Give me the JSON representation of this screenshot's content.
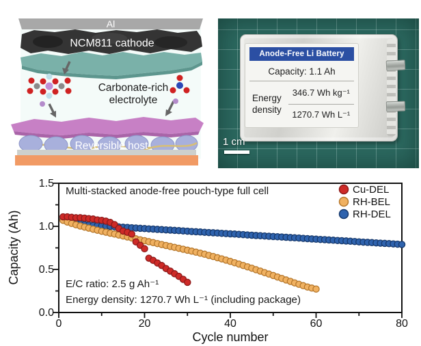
{
  "schematic": {
    "al_label": "Al",
    "cathode_label": "NCM811 cathode",
    "electrolyte_label_line1": "Carbonate-rich",
    "electrolyte_label_line2": "electrolyte",
    "host_label": "Reversible host",
    "colors": {
      "al": "#a8a8a8",
      "cathode": "#343434",
      "cathode_coating": "#7ab1a9",
      "electrolyte_layer": "#c780c5",
      "host_sphere": "#a8b0dc",
      "wire": "#d8bf75",
      "base": "#f19a64"
    }
  },
  "photo": {
    "mat_color": "#2c6a61",
    "label": {
      "header": "Anode-Free Li Battery",
      "header_color": "#2b4fa3",
      "capacity_line": "Capacity: 1.1 Ah",
      "energy_title_line1": "Energy",
      "energy_title_line2": "density",
      "gravimetric_energy": "346.7 Wh kg⁻¹",
      "volumetric_energy": "1270.7 Wh L⁻¹"
    },
    "scale_bar_label": "1 cm"
  },
  "chart_data": {
    "type": "scatter",
    "title_annotation": "Multi-stacked anode-free pouch-type full cell",
    "xlabel": "Cycle number",
    "ylabel": "Capacity (Ah)",
    "xlim": [
      0,
      80
    ],
    "ylim": [
      0.0,
      1.5
    ],
    "x_ticks": [
      0,
      20,
      40,
      60,
      80
    ],
    "y_ticks": [
      0.0,
      0.5,
      1.0,
      1.5
    ],
    "x_tick_labels": [
      "0",
      "20",
      "40",
      "60",
      "80"
    ],
    "y_tick_labels": [
      "1.5",
      "1.0",
      "0.5",
      "0.0"
    ],
    "grid": false,
    "legend_position": "top-right",
    "annotations": [
      "E/C ratio: 2.5 g Ah⁻¹",
      "Energy density: 1270.7 Wh L⁻¹ (including package)"
    ],
    "series": [
      {
        "name": "Cu-DEL",
        "color": "#ce2a27",
        "edge": "#8c1a1a",
        "x_start": 1,
        "values": [
          1.11,
          1.11,
          1.105,
          1.1,
          1.1,
          1.095,
          1.09,
          1.085,
          1.075,
          1.07,
          1.06,
          1.045,
          1.02,
          0.975,
          0.945,
          0.93,
          0.91,
          0.82,
          0.78,
          0.74,
          0.63,
          0.605,
          0.575,
          0.545,
          0.51,
          0.48,
          0.45,
          0.42,
          0.385,
          0.35
        ]
      },
      {
        "name": "RH-BEL",
        "color": "#f0b161",
        "edge": "#b5772b",
        "x_start": 1,
        "values": [
          1.07,
          1.05,
          1.033,
          1.018,
          1.004,
          0.991,
          0.979,
          0.967,
          0.955,
          0.943,
          0.932,
          0.921,
          0.91,
          0.899,
          0.888,
          0.877,
          0.866,
          0.855,
          0.844,
          0.833,
          0.822,
          0.811,
          0.8,
          0.789,
          0.778,
          0.767,
          0.756,
          0.745,
          0.734,
          0.723,
          0.712,
          0.7,
          0.688,
          0.676,
          0.663,
          0.65,
          0.636,
          0.622,
          0.608,
          0.593,
          0.578,
          0.562,
          0.546,
          0.53,
          0.514,
          0.497,
          0.48,
          0.463,
          0.446,
          0.429,
          0.412,
          0.395,
          0.378,
          0.361,
          0.344,
          0.327,
          0.311,
          0.296,
          0.283,
          0.272
        ]
      },
      {
        "name": "RH-DEL",
        "color": "#2f63ae",
        "edge": "#16386b",
        "x_start": 1,
        "values": [
          1.08,
          1.062,
          1.048,
          1.037,
          1.028,
          1.021,
          1.015,
          1.01,
          1.007,
          1.005,
          1.002,
          0.999,
          0.996,
          0.993,
          0.99,
          0.987,
          0.983,
          0.98,
          0.977,
          0.974,
          0.971,
          0.968,
          0.965,
          0.962,
          0.959,
          0.956,
          0.953,
          0.95,
          0.947,
          0.944,
          0.94,
          0.937,
          0.934,
          0.931,
          0.928,
          0.925,
          0.922,
          0.919,
          0.916,
          0.913,
          0.91,
          0.907,
          0.904,
          0.9,
          0.897,
          0.894,
          0.891,
          0.888,
          0.885,
          0.882,
          0.879,
          0.876,
          0.873,
          0.87,
          0.867,
          0.864,
          0.86,
          0.857,
          0.854,
          0.851,
          0.848,
          0.845,
          0.842,
          0.839,
          0.836,
          0.833,
          0.83,
          0.827,
          0.824,
          0.82,
          0.817,
          0.814,
          0.811,
          0.808,
          0.805,
          0.802,
          0.799,
          0.796,
          0.793,
          0.79
        ]
      }
    ]
  }
}
